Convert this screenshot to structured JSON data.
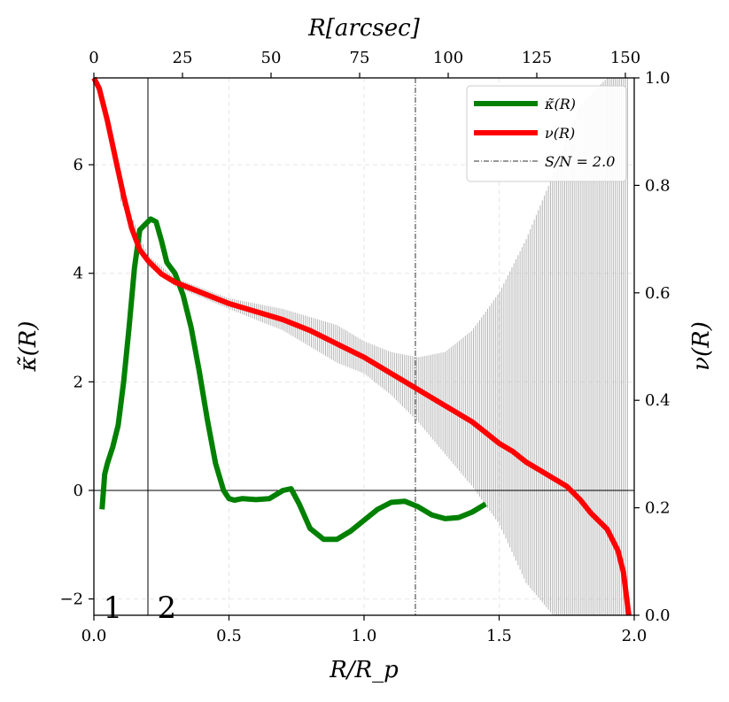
{
  "chart_data": {
    "type": "line",
    "title": "",
    "xlabel": "R/R_p",
    "ylabel": "κ̃(R)",
    "ylabel_right": "ν(R)",
    "xlabel_top": "R[arcsec]",
    "xlim": [
      0.0,
      2.0
    ],
    "ylim_left": [
      -2.3,
      7.6
    ],
    "ylim_right": [
      0.0,
      1.0
    ],
    "xlim_top_arcsec": [
      0,
      152.5
    ],
    "x_ticks": [
      "0.0",
      "0.5",
      "1.0",
      "1.5",
      "2.0"
    ],
    "y_ticks_left": [
      "−2",
      "0",
      "2",
      "4",
      "6"
    ],
    "y_ticks_right": [
      "0.0",
      "0.2",
      "0.4",
      "0.6",
      "0.8",
      "1.0"
    ],
    "x_ticks_top": [
      "0",
      "25",
      "50",
      "75",
      "100",
      "125",
      "150"
    ],
    "grid": true,
    "legend_position": "top-right",
    "legend": [
      {
        "label": "κ̃(R)",
        "color": "#008000",
        "style": "solid-thick"
      },
      {
        "label": "ν(R)",
        "color": "#ff0000",
        "style": "solid-thick"
      },
      {
        "label": "S/N = 2.0",
        "color": "#333333",
        "style": "dashdot"
      }
    ],
    "annotations": [
      {
        "text": "1",
        "x": 0.07,
        "y": -2.15
      },
      {
        "text": "2",
        "x": 0.27,
        "y": -2.15
      }
    ],
    "vlines": [
      {
        "name": "region-divider",
        "x": 0.2,
        "style": "solid"
      },
      {
        "name": "signal-to-noise",
        "x": 1.19,
        "style": "dashdot"
      }
    ],
    "hlines": [
      {
        "name": "zero-line",
        "y": 0
      }
    ],
    "series": [
      {
        "name": "κ̃(R)",
        "axis": "left",
        "color": "#008000",
        "x": [
          0.03,
          0.04,
          0.05,
          0.07,
          0.09,
          0.11,
          0.13,
          0.15,
          0.17,
          0.19,
          0.21,
          0.23,
          0.25,
          0.27,
          0.3,
          0.33,
          0.36,
          0.39,
          0.42,
          0.45,
          0.48,
          0.5,
          0.52,
          0.55,
          0.6,
          0.65,
          0.7,
          0.73,
          0.76,
          0.8,
          0.85,
          0.9,
          0.95,
          1.0,
          1.05,
          1.1,
          1.15,
          1.2,
          1.25,
          1.3,
          1.35,
          1.4,
          1.45
        ],
        "y": [
          -0.35,
          0.3,
          0.5,
          0.8,
          1.2,
          2.0,
          3.0,
          4.1,
          4.8,
          4.9,
          5.0,
          4.95,
          4.6,
          4.2,
          4.0,
          3.6,
          3.0,
          2.2,
          1.3,
          0.5,
          0.0,
          -0.15,
          -0.18,
          -0.15,
          -0.17,
          -0.15,
          0.0,
          0.03,
          -0.25,
          -0.7,
          -0.9,
          -0.9,
          -0.75,
          -0.55,
          -0.35,
          -0.22,
          -0.2,
          -0.3,
          -0.45,
          -0.52,
          -0.5,
          -0.4,
          -0.25
        ]
      },
      {
        "name": "ν(R)",
        "axis": "right",
        "color": "#ff0000",
        "x": [
          0.0,
          0.02,
          0.05,
          0.08,
          0.11,
          0.14,
          0.17,
          0.2,
          0.25,
          0.3,
          0.4,
          0.5,
          0.6,
          0.7,
          0.8,
          0.9,
          1.0,
          1.1,
          1.2,
          1.3,
          1.35,
          1.4,
          1.45,
          1.5,
          1.55,
          1.6,
          1.65,
          1.7,
          1.75,
          1.8,
          1.84,
          1.88,
          1.9,
          1.92,
          1.94,
          1.96,
          1.98
        ],
        "y": [
          1.0,
          0.98,
          0.92,
          0.85,
          0.78,
          0.72,
          0.68,
          0.66,
          0.635,
          0.62,
          0.6,
          0.58,
          0.565,
          0.55,
          0.53,
          0.505,
          0.48,
          0.45,
          0.42,
          0.39,
          0.375,
          0.36,
          0.34,
          0.32,
          0.305,
          0.285,
          0.27,
          0.255,
          0.24,
          0.215,
          0.19,
          0.17,
          0.16,
          0.14,
          0.12,
          0.08,
          0.0
        ]
      }
    ],
    "error_band": {
      "name": "ν(R) uncertainty",
      "axis": "right",
      "color": "#b4b4b4",
      "x": [
        0.1,
        0.2,
        0.3,
        0.5,
        0.7,
        0.9,
        1.0,
        1.1,
        1.2,
        1.3,
        1.4,
        1.5,
        1.6,
        1.7,
        1.8,
        1.9,
        1.98
      ],
      "upper": [
        0.79,
        0.67,
        0.628,
        0.59,
        0.57,
        0.54,
        0.51,
        0.49,
        0.48,
        0.49,
        0.53,
        0.6,
        0.7,
        0.82,
        0.95,
        1.0,
        1.0
      ],
      "lower": [
        0.77,
        0.65,
        0.612,
        0.57,
        0.53,
        0.47,
        0.45,
        0.41,
        0.36,
        0.3,
        0.24,
        0.17,
        0.06,
        0.0,
        0.0,
        0.0,
        0.0
      ]
    }
  }
}
